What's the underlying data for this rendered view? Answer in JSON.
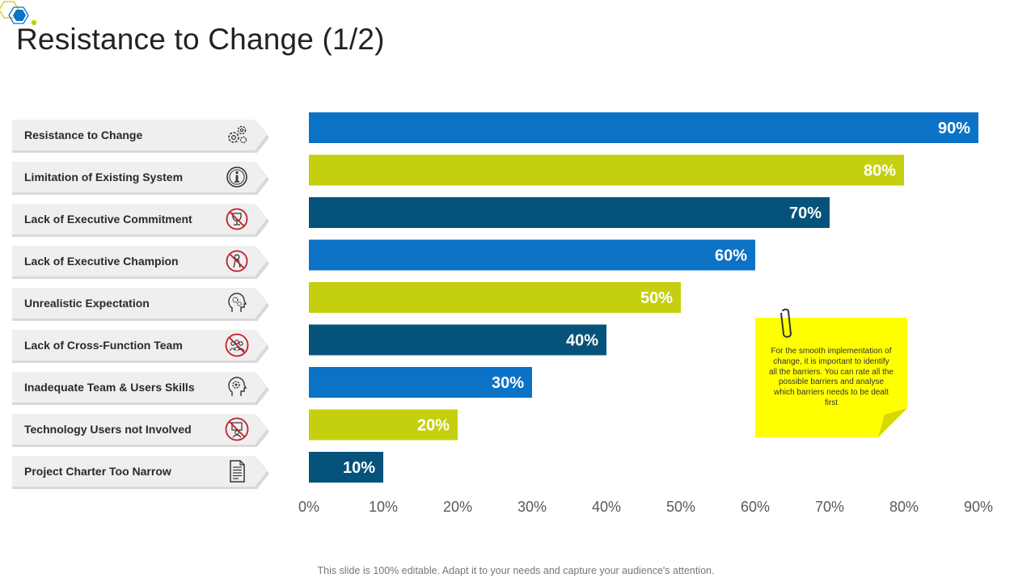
{
  "slide": {
    "title": "Resistance to Change (1/2)",
    "footer": "This slide is 100% editable. Adapt it to your needs and capture your audience's attention."
  },
  "labels": [
    {
      "text": "Resistance to Change",
      "icon": "gears-icon"
    },
    {
      "text": "Limitation of Existing System",
      "icon": "info-icon"
    },
    {
      "text": "Lack of Executive Commitment",
      "icon": "no-trophy-icon"
    },
    {
      "text": "Lack of Executive Champion",
      "icon": "no-champion-icon"
    },
    {
      "text": "Unrealistic Expectation",
      "icon": "head-gears-icon"
    },
    {
      "text": "Lack of Cross-Function  Team",
      "icon": "no-team-icon"
    },
    {
      "text": "Inadequate Team & Users  Skills",
      "icon": "head-gear-icon"
    },
    {
      "text": "Technology Users  not Involved",
      "icon": "no-user-icon"
    },
    {
      "text": "Project Charter Too Narrow",
      "icon": "document-icon"
    }
  ],
  "note": {
    "text": "For the smooth implementation of change, it is important to identify all the barriers. You can rate all the possible barriers and analyse which barriers needs to be dealt  first"
  },
  "colors": {
    "blue": "#0B72C6",
    "lime": "#C4D00E",
    "navy": "#05527A",
    "note_yellow": "#FFFF00",
    "note_fold": "#D9D700"
  },
  "chart_data": {
    "type": "bar",
    "orientation": "horizontal",
    "categories": [
      "Resistance to Change",
      "Limitation of Existing System",
      "Lack of Executive Commitment",
      "Lack of Executive Champion",
      "Unrealistic Expectation",
      "Lack of Cross-Function  Team",
      "Inadequate Team & Users  Skills",
      "Technology Users  not Involved",
      "Project Charter Too Narrow"
    ],
    "values": [
      90,
      80,
      70,
      60,
      50,
      40,
      30,
      20,
      10
    ],
    "value_labels": [
      "90%",
      "80%",
      "70%",
      "60%",
      "50%",
      "40%",
      "30%",
      "20%",
      "10%"
    ],
    "bar_colors": [
      "#0B72C6",
      "#C4D00E",
      "#05527A",
      "#0B72C6",
      "#C4D00E",
      "#05527A",
      "#0B72C6",
      "#C4D00E",
      "#05527A"
    ],
    "xlim": [
      0,
      90
    ],
    "xticks": [
      0,
      10,
      20,
      30,
      40,
      50,
      60,
      70,
      80,
      90
    ],
    "xtick_labels": [
      "0%",
      "10%",
      "20%",
      "30%",
      "40%",
      "50%",
      "60%",
      "70%",
      "80%",
      "90%"
    ],
    "grid": false,
    "legend": "none"
  }
}
